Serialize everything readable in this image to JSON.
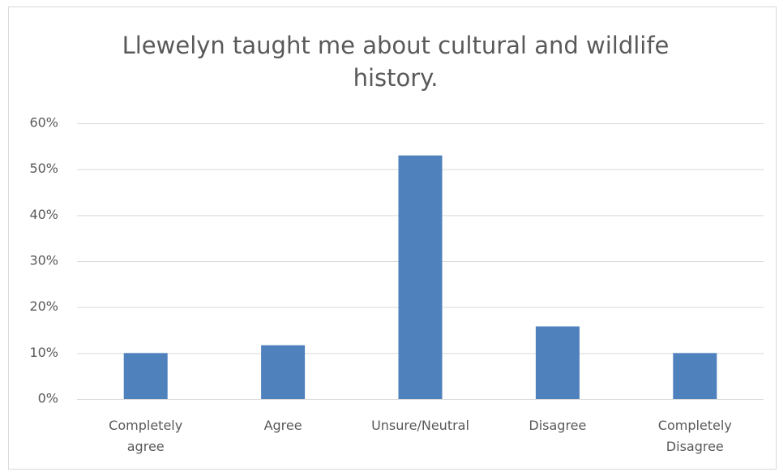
{
  "chart_data": {
    "type": "bar",
    "title": "Llewelyn taught me about cultural and wildlife history.",
    "categories": [
      "Completely agree",
      "Agree",
      "Unsure/Neutral",
      "Disagree",
      "Completely Disagree"
    ],
    "values": [
      10,
      11.7,
      53,
      15.8,
      10
    ],
    "color": "#4f81bd",
    "ylim": [
      0,
      60
    ],
    "yticks": [
      {
        "value": 0,
        "label": "0%"
      },
      {
        "value": 10,
        "label": "10%"
      },
      {
        "value": 20,
        "label": "20%"
      },
      {
        "value": 30,
        "label": "30%"
      },
      {
        "value": 40,
        "label": "40%"
      },
      {
        "value": 50,
        "label": "50%"
      },
      {
        "value": 60,
        "label": "60%"
      }
    ],
    "grid": true
  }
}
